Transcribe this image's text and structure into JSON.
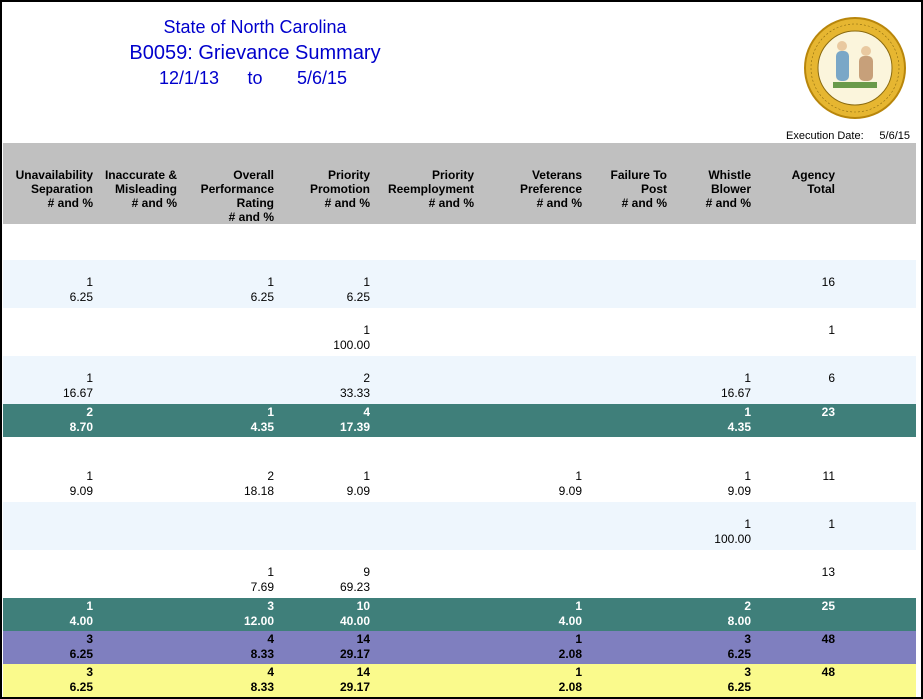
{
  "header": {
    "line1": "State of North Carolina",
    "line2": "B0059: Grievance Summary",
    "date_from": "12/1/13",
    "to_word": "to",
    "date_to": "5/6/15",
    "execution_label": "Execution Date:",
    "execution_date": "5/6/15"
  },
  "columns": [
    [
      "Unavailability",
      "Separation",
      "# and %"
    ],
    [
      "Inaccurate &",
      "Misleading",
      "# and %"
    ],
    [
      "Overall",
      "Performance",
      "Rating",
      "# and %"
    ],
    [
      "Priority",
      "Promotion",
      "# and %"
    ],
    [
      "Priority",
      "Reemployment",
      "# and %"
    ],
    [
      "Veterans",
      "Preference",
      "# and %"
    ],
    [
      "Failure To",
      "Post",
      "# and %"
    ],
    [
      "Whistle",
      "Blower",
      "# and %"
    ],
    [
      "Agency",
      "Total"
    ]
  ],
  "groups": [
    {
      "rows": [
        {
          "color": "#eef6fd",
          "cells": [
            [
              "1",
              "6.25"
            ],
            null,
            [
              "1",
              "6.25"
            ],
            [
              "1",
              "6.25"
            ],
            null,
            null,
            null,
            null
          ],
          "total": "16"
        },
        {
          "color": "#ffffff",
          "cells": [
            null,
            null,
            null,
            [
              "1",
              "100.00"
            ],
            null,
            null,
            null,
            null
          ],
          "total": "1"
        },
        {
          "color": "#eef6fd",
          "cells": [
            [
              "1",
              "16.67"
            ],
            null,
            null,
            [
              "2",
              "33.33"
            ],
            null,
            null,
            null,
            [
              "1",
              "16.67"
            ]
          ],
          "total": "6"
        }
      ],
      "subtotal": {
        "color": "#3f7f7a",
        "text_color": "#ffffff",
        "cells": [
          [
            "2",
            "8.70"
          ],
          null,
          [
            "1",
            "4.35"
          ],
          [
            "4",
            "17.39"
          ],
          null,
          null,
          null,
          [
            "1",
            "4.35"
          ]
        ],
        "total": "23"
      }
    },
    {
      "rows": [
        {
          "color": "#ffffff",
          "cells": [
            [
              "1",
              "9.09"
            ],
            null,
            [
              "2",
              "18.18"
            ],
            [
              "1",
              "9.09"
            ],
            null,
            [
              "1",
              "9.09"
            ],
            null,
            [
              "1",
              "9.09"
            ]
          ],
          "total": "11"
        },
        {
          "color": "#eef6fd",
          "cells": [
            null,
            null,
            null,
            null,
            null,
            null,
            null,
            [
              "1",
              "100.00"
            ]
          ],
          "total": "1"
        },
        {
          "color": "#ffffff",
          "cells": [
            null,
            null,
            [
              "1",
              "7.69"
            ],
            [
              "9",
              "69.23"
            ],
            null,
            null,
            null,
            null
          ],
          "total": "13"
        }
      ],
      "subtotal": {
        "color": "#3f7f7a",
        "text_color": "#ffffff",
        "cells": [
          [
            "1",
            "4.00"
          ],
          null,
          [
            "3",
            "12.00"
          ],
          [
            "10",
            "40.00"
          ],
          null,
          [
            "1",
            "4.00"
          ],
          null,
          [
            "2",
            "8.00"
          ]
        ],
        "total": "25"
      }
    }
  ],
  "totals": [
    {
      "color": "#7f7fbf",
      "text_color": "#000000",
      "cells": [
        [
          "3",
          "6.25"
        ],
        null,
        [
          "4",
          "8.33"
        ],
        [
          "14",
          "29.17"
        ],
        null,
        [
          "1",
          "2.08"
        ],
        null,
        [
          "3",
          "6.25"
        ]
      ],
      "total": "48"
    },
    {
      "color": "#fafa8c",
      "text_color": "#000000",
      "cells": [
        [
          "3",
          "6.25"
        ],
        null,
        [
          "4",
          "8.33"
        ],
        [
          "14",
          "29.17"
        ],
        null,
        [
          "1",
          "2.08"
        ],
        null,
        [
          "3",
          "6.25"
        ]
      ],
      "total": "48"
    }
  ]
}
